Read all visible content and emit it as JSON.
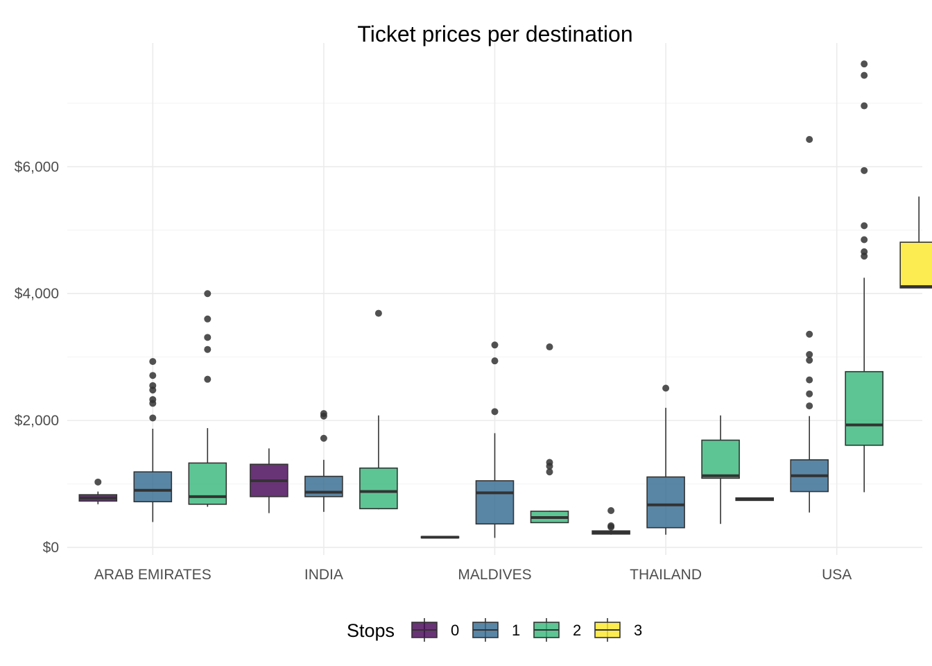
{
  "chart_data": {
    "type": "boxplot",
    "title": "Ticket prices per destination",
    "xlabel": "",
    "ylabel": "",
    "categories": [
      "ARAB EMIRATES",
      "INDIA",
      "MALDIVES",
      "THAILAND",
      "USA"
    ],
    "y_ticks": [
      0,
      2000,
      4000,
      6000
    ],
    "y_tick_labels": [
      "$0",
      "$2,000",
      "$4,000",
      "$6,000"
    ],
    "ylim": [
      -120,
      7950
    ],
    "grid": true,
    "legend": {
      "title": "Stops",
      "position": "bottom",
      "items": [
        {
          "label": "0",
          "color": "#440154"
        },
        {
          "label": "1",
          "color": "#31688e"
        },
        {
          "label": "2",
          "color": "#35b779"
        },
        {
          "label": "3",
          "color": "#fde725"
        }
      ]
    },
    "groups": [
      {
        "category": "ARAB EMIRATES",
        "stops": [
          "0",
          "1",
          "2"
        ],
        "boxes": [
          {
            "stops": "0",
            "min": 680,
            "q1": 730,
            "median": 780,
            "q3": 830,
            "max": 880,
            "outliers": [
              1030
            ]
          },
          {
            "stops": "1",
            "min": 400,
            "q1": 720,
            "median": 900,
            "q3": 1190,
            "max": 1870,
            "outliers": [
              2040,
              2270,
              2330,
              2480,
              2550,
              2710,
              2930
            ]
          },
          {
            "stops": "2",
            "min": 640,
            "q1": 680,
            "median": 800,
            "q3": 1330,
            "max": 1880,
            "outliers": [
              2650,
              3120,
              3310,
              3600,
              4000
            ]
          }
        ]
      },
      {
        "category": "INDIA",
        "stops": [
          "0",
          "1",
          "2"
        ],
        "boxes": [
          {
            "stops": "0",
            "min": 540,
            "q1": 800,
            "median": 1050,
            "q3": 1310,
            "max": 1560,
            "outliers": []
          },
          {
            "stops": "1",
            "min": 560,
            "q1": 800,
            "median": 870,
            "q3": 1120,
            "max": 1380,
            "outliers": [
              1720,
              2070,
              2110
            ]
          },
          {
            "stops": "2",
            "min": 600,
            "q1": 610,
            "median": 880,
            "q3": 1250,
            "max": 2080,
            "outliers": [
              3690
            ]
          }
        ]
      },
      {
        "category": "MALDIVES",
        "stops": [
          "0",
          "1",
          "2"
        ],
        "boxes": [
          {
            "stops": "0",
            "min": 150,
            "q1": 150,
            "median": 160,
            "q3": 170,
            "max": 170,
            "outliers": []
          },
          {
            "stops": "1",
            "min": 150,
            "q1": 370,
            "median": 860,
            "q3": 1050,
            "max": 1800,
            "outliers": [
              2140,
              2940,
              3190
            ]
          },
          {
            "stops": "2",
            "min": 390,
            "q1": 390,
            "median": 470,
            "q3": 570,
            "max": 580,
            "outliers": [
              1190,
              1280,
              1340,
              3160
            ]
          }
        ]
      },
      {
        "category": "THAILAND",
        "stops": [
          "0",
          "1",
          "2"
        ],
        "boxes": [
          {
            "stops": "0",
            "min": 200,
            "q1": 210,
            "median": 240,
            "q3": 260,
            "max": 270,
            "outliers": [
              320,
              340,
              580
            ]
          },
          {
            "stops": "1",
            "min": 200,
            "q1": 310,
            "median": 670,
            "q3": 1110,
            "max": 2200,
            "outliers": [
              2510
            ]
          },
          {
            "stops": "2",
            "min": 370,
            "q1": 1090,
            "median": 1130,
            "q3": 1690,
            "max": 2080,
            "outliers": []
          }
        ]
      },
      {
        "category": "USA",
        "stops": [
          "0",
          "1",
          "2",
          "3"
        ],
        "boxes": [
          {
            "stops": "0",
            "min": 740,
            "q1": 740,
            "median": 760,
            "q3": 780,
            "max": 780,
            "outliers": []
          },
          {
            "stops": "1",
            "min": 550,
            "q1": 880,
            "median": 1130,
            "q3": 1380,
            "max": 2070,
            "outliers": [
              2230,
              2420,
              2640,
              2950,
              3040,
              3360,
              6430
            ]
          },
          {
            "stops": "2",
            "min": 870,
            "q1": 1610,
            "median": 1930,
            "q3": 2770,
            "max": 4250,
            "outliers": [
              4590,
              4660,
              4850,
              5070,
              5940,
              6960,
              7440,
              7620
            ]
          },
          {
            "stops": "3",
            "min": 4090,
            "q1": 4090,
            "median": 4110,
            "q3": 4810,
            "max": 5530,
            "outliers": []
          }
        ]
      }
    ]
  }
}
